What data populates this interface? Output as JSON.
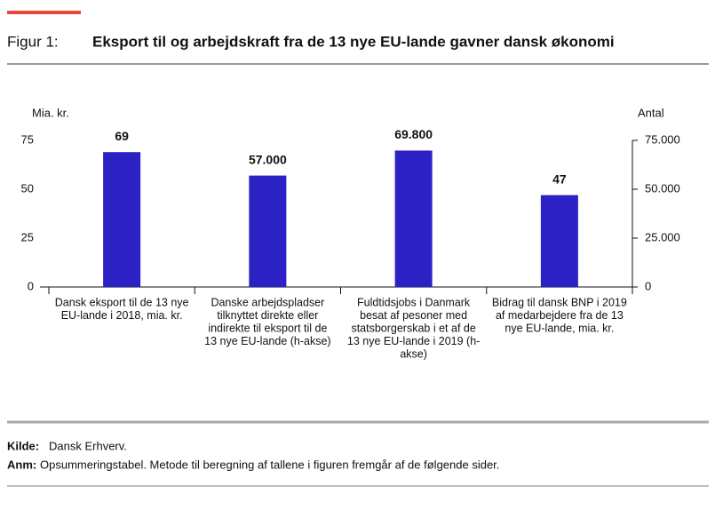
{
  "chart_data": {
    "type": "bar",
    "figure_label": "Figur 1:",
    "title": "Eksport til og arbejdskraft fra de 13 nye EU-lande gavner dansk økonomi",
    "ylabel": "Mia. kr.",
    "y2label": "Antal",
    "categories": [
      [
        "Dansk eksport til de 13 nye",
        "EU-lande i 2018, mia. kr."
      ],
      [
        "Danske arbejdspladser",
        "tilknyttet direkte eller",
        "indirekte til eksport til de",
        "13 nye EU-lande (h-akse)"
      ],
      [
        "Fuldtidsjobs i Danmark",
        "besat af pesoner med",
        "statsborgerskab i et af de",
        "13 nye EU-lande i 2019 (h-",
        "akse)"
      ],
      [
        "Bidrag til dansk BNP i 2019",
        "af medarbejdere fra de 13",
        "nye EU-lande, mia. kr."
      ]
    ],
    "values": [
      69,
      57000,
      69800,
      47
    ],
    "value_labels": [
      "69",
      "57.000",
      "69.800",
      "47"
    ],
    "axes": [
      "y",
      "y2",
      "y2",
      "y"
    ],
    "color": "#2b21c4",
    "ylim": [
      0,
      75
    ],
    "yticks": [
      0,
      25,
      50,
      75
    ],
    "y2lim": [
      0,
      75000
    ],
    "y2ticks": [
      0,
      {
        "value": 25000,
        "label": "25.000"
      },
      {
        "value": 50000,
        "label": "50.000"
      },
      {
        "value": 75000,
        "label": "75.000"
      }
    ],
    "source_label": "Kilde:",
    "source": "Dansk Erhverv.",
    "note_label": "Anm:",
    "note": "Opsummeringstabel. Metode til beregning af tallene i figuren fremgår af de følgende sider."
  }
}
